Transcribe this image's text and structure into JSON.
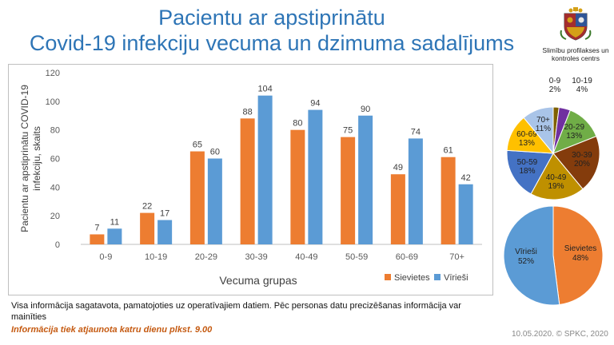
{
  "header": {
    "title_line1": "Pacientu ar apstiprinātu",
    "title_line2": "Covid-19 infekciju vecuma un dzimuma sadalījums"
  },
  "logo": {
    "text": "Slimību profilakses un kontroles centrs"
  },
  "chart_data": [
    {
      "type": "bar",
      "categories": [
        "0-9",
        "10-19",
        "20-29",
        "30-39",
        "40-49",
        "50-59",
        "60-69",
        "70+"
      ],
      "series": [
        {
          "name": "Sievietes",
          "color": "#ed7d31",
          "values": [
            7,
            22,
            65,
            88,
            80,
            75,
            49,
            61
          ]
        },
        {
          "name": "Vīrieši",
          "color": "#5b9bd5",
          "values": [
            11,
            17,
            60,
            104,
            94,
            90,
            74,
            42
          ]
        }
      ],
      "xlabel": "Vecuma grupas",
      "ylabel": "Pacientu ar apstiprinātu COVID-19 infekciju, skaits",
      "ylim": [
        0,
        120
      ],
      "yticks": [
        "0",
        "20",
        "40",
        "60",
        "80",
        "100",
        "120"
      ],
      "grid": false,
      "legend": "bottom-right"
    },
    {
      "type": "pie",
      "slices": [
        {
          "label": "0-9",
          "pct": "2%",
          "value": 2,
          "color": "#7f6000"
        },
        {
          "label": "10-19",
          "pct": "4%",
          "value": 4,
          "color": "#7030a0"
        },
        {
          "label": "20-29",
          "pct": "13%",
          "value": 13,
          "color": "#70ad47"
        },
        {
          "label": "30-39",
          "pct": "20%",
          "value": 20,
          "color": "#843c0c"
        },
        {
          "label": "40-49",
          "pct": "19%",
          "value": 19,
          "color": "#bf9000"
        },
        {
          "label": "50-59",
          "pct": "18%",
          "value": 18,
          "color": "#4472c4"
        },
        {
          "label": "60-69",
          "pct": "13%",
          "value": 13,
          "color": "#ffc000"
        },
        {
          "label": "70+",
          "pct": "11%",
          "value": 11,
          "color": "#a9c4e8"
        }
      ]
    },
    {
      "type": "pie",
      "slices": [
        {
          "label": "Sievietes",
          "pct": "48%",
          "value": 48,
          "color": "#ed7d31"
        },
        {
          "label": "Vīrieši",
          "pct": "52%",
          "value": 52,
          "color": "#5b9bd5"
        }
      ]
    }
  ],
  "footer": {
    "note": "Visa informācija sagatavota, pamatojoties uz operatīvajiem datiem. Pēc personas datu precizēšanas informācija var mainīties",
    "update": "Informācija tiek atjaunota katru dienu plkst. 9.00",
    "date": "10.05.2020. © SPKC, 2020"
  }
}
